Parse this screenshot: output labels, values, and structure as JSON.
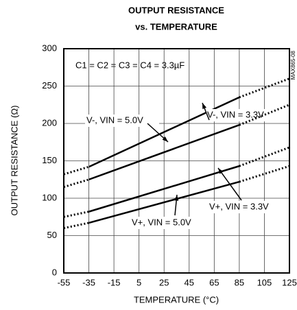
{
  "chart_data": {
    "type": "line",
    "title": [
      "OUTPUT RESISTANCE",
      "vs. TEMPERATURE"
    ],
    "x_label": "TEMPERATURE (°C)",
    "y_label": "OUTPUT RESISTANCE (Ω)",
    "annotations": [
      "C1 = C2 = C3 = C4 = 3.3µF",
      "MAX865-08"
    ],
    "x": [
      -55,
      -35,
      85,
      125
    ],
    "series": [
      {
        "name": "V-, VIN = 3.3V",
        "color": "#000000",
        "values": [
          132,
          142,
          235,
          260
        ]
      },
      {
        "name": "V-, VIN = 5.0V",
        "color": "#000000",
        "values": [
          115,
          125,
          198,
          225
        ]
      },
      {
        "name": "V+, VIN = 3.3V",
        "color": "#000000",
        "values": [
          75,
          82,
          143,
          168
        ]
      },
      {
        "name": "V+, VIN = 5.0V",
        "color": "#000000",
        "values": [
          60,
          67,
          122,
          143
        ]
      }
    ],
    "xlim": [
      -55,
      125
    ],
    "xticks": [
      -55,
      -35,
      -15,
      5,
      25,
      45,
      65,
      85,
      105,
      125
    ],
    "ylim": [
      0,
      300
    ],
    "yticks": [
      0,
      50,
      100,
      150,
      200,
      250,
      300
    ],
    "grid": true
  }
}
